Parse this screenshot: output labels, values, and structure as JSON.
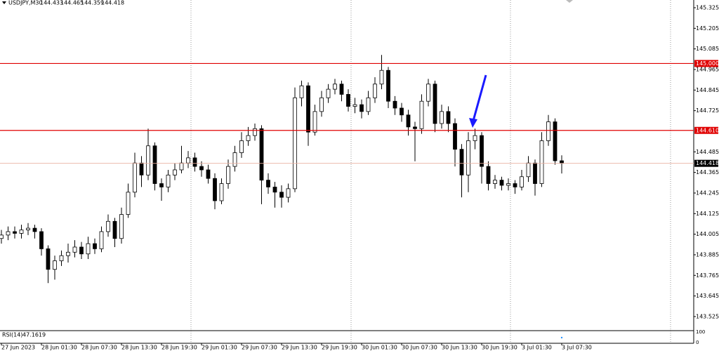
{
  "chart_data": {
    "type": "candlestick",
    "title": "USDJPY,M30",
    "categories": [
      "27 Jun 2023",
      null,
      null,
      null,
      null,
      null,
      "28 Jun 01:30",
      null,
      null,
      null,
      null,
      null,
      "28 Jun 07:30",
      null,
      null,
      null,
      null,
      null,
      "28 Jun 13:30",
      null,
      null,
      null,
      null,
      null,
      "28 Jun 19:30",
      null,
      null,
      null,
      null,
      null,
      "29 Jun 01:30",
      null,
      null,
      null,
      null,
      null,
      "29 Jun 07:30",
      null,
      null,
      null,
      null,
      null,
      "29 Jun 13:30",
      null,
      null,
      null,
      null,
      null,
      "29 Jun 19:30",
      null,
      null,
      null,
      null,
      null,
      "30 Jun 01:30",
      null,
      null,
      null,
      null,
      null,
      "30 Jun 07:30",
      null,
      null,
      null,
      null,
      null,
      "30 Jun 13:30",
      null,
      null,
      null,
      null,
      null,
      "30 Jun 19:30",
      null,
      null,
      null,
      null,
      null,
      "3 Jul 01:30",
      null,
      null,
      null,
      null,
      null,
      "3 Jul 07:30"
    ],
    "open": [
      143.98,
      144.0,
      144.02,
      144.01,
      144.03,
      144.04,
      144.02,
      143.92,
      143.8,
      143.85,
      143.88,
      143.9,
      143.93,
      143.89,
      143.95,
      143.92,
      144.02,
      144.08,
      143.98,
      144.12,
      144.25,
      144.42,
      144.35,
      144.52,
      144.3,
      144.28,
      144.35,
      144.38,
      144.42,
      144.45,
      144.4,
      144.38,
      144.33,
      144.2,
      144.3,
      144.4,
      144.48,
      144.55,
      144.58,
      144.62,
      144.32,
      144.28,
      144.25,
      144.22,
      144.27,
      144.8,
      144.87,
      144.6,
      144.72,
      144.8,
      144.85,
      144.88,
      144.82,
      144.75,
      144.76,
      144.72,
      144.8,
      144.88,
      144.96,
      144.78,
      144.74,
      144.7,
      144.63,
      144.62,
      144.78,
      144.88,
      144.65,
      144.72,
      144.65,
      144.5,
      144.35,
      144.55,
      144.58,
      144.4,
      144.3,
      144.32,
      144.29,
      144.3,
      144.28,
      144.34,
      144.42,
      144.3,
      144.55,
      144.66,
      144.433
    ],
    "high": [
      144.03,
      144.05,
      144.05,
      144.06,
      144.07,
      144.06,
      144.04,
      143.94,
      143.88,
      143.91,
      143.95,
      143.97,
      143.96,
      143.99,
      143.98,
      144.05,
      144.12,
      144.1,
      144.16,
      144.3,
      144.48,
      144.46,
      144.62,
      144.54,
      144.33,
      144.38,
      144.42,
      144.52,
      144.49,
      144.48,
      144.43,
      144.41,
      144.36,
      144.33,
      144.44,
      144.52,
      144.6,
      144.63,
      144.65,
      144.64,
      144.36,
      144.31,
      144.29,
      144.3,
      144.86,
      144.9,
      144.89,
      144.76,
      144.84,
      144.88,
      144.91,
      144.9,
      144.85,
      144.8,
      144.79,
      144.84,
      144.92,
      145.05,
      144.98,
      144.81,
      144.77,
      144.73,
      144.66,
      144.82,
      144.91,
      144.9,
      144.76,
      144.75,
      144.68,
      144.53,
      144.6,
      144.62,
      144.6,
      144.43,
      144.35,
      144.34,
      144.33,
      144.32,
      144.38,
      144.46,
      144.44,
      144.6,
      144.7,
      144.68,
      144.465
    ],
    "low": [
      143.95,
      143.97,
      143.98,
      143.98,
      144.0,
      143.98,
      143.88,
      143.72,
      143.74,
      143.82,
      143.84,
      143.87,
      143.86,
      143.86,
      143.89,
      143.9,
      143.99,
      143.93,
      143.95,
      144.1,
      144.22,
      144.28,
      144.32,
      144.26,
      144.2,
      144.25,
      144.32,
      144.36,
      144.39,
      144.37,
      144.34,
      144.3,
      144.15,
      144.18,
      144.27,
      144.37,
      144.45,
      144.52,
      144.55,
      144.18,
      144.24,
      144.16,
      144.16,
      144.19,
      144.25,
      144.75,
      144.52,
      144.58,
      144.69,
      144.77,
      144.82,
      144.78,
      144.72,
      144.71,
      144.68,
      144.7,
      144.77,
      144.85,
      144.74,
      144.7,
      144.66,
      144.58,
      144.43,
      144.59,
      144.75,
      144.6,
      144.62,
      144.6,
      144.4,
      144.22,
      144.25,
      144.5,
      144.3,
      144.26,
      144.27,
      144.26,
      144.26,
      144.24,
      144.26,
      144.31,
      144.23,
      144.28,
      144.52,
      144.41,
      144.359
    ],
    "close": [
      144.0,
      144.02,
      144.01,
      144.03,
      144.04,
      144.02,
      143.92,
      143.8,
      143.85,
      143.88,
      143.9,
      143.93,
      143.89,
      143.95,
      143.92,
      144.02,
      144.08,
      143.98,
      144.12,
      144.25,
      144.42,
      144.35,
      144.52,
      144.3,
      144.28,
      144.35,
      144.38,
      144.42,
      144.45,
      144.4,
      144.38,
      144.33,
      144.2,
      144.3,
      144.4,
      144.48,
      144.55,
      144.58,
      144.62,
      144.32,
      144.28,
      144.25,
      144.22,
      144.27,
      144.8,
      144.87,
      144.6,
      144.72,
      144.8,
      144.85,
      144.88,
      144.82,
      144.75,
      144.76,
      144.72,
      144.8,
      144.88,
      144.96,
      144.78,
      144.74,
      144.7,
      144.63,
      144.62,
      144.78,
      144.88,
      144.65,
      144.72,
      144.65,
      144.5,
      144.35,
      144.55,
      144.58,
      144.4,
      144.3,
      144.32,
      144.29,
      144.3,
      144.28,
      144.34,
      144.42,
      144.3,
      144.55,
      144.66,
      144.433,
      144.418
    ],
    "up_color": "#ffffff",
    "down_color": "#000000",
    "wick_color": "#000000",
    "ylim": [
      143.447,
      145.37
    ],
    "yticks": [
      143.525,
      143.645,
      143.765,
      143.885,
      144.005,
      144.125,
      144.245,
      144.365,
      144.485,
      144.725,
      144.845,
      144.965,
      145.085,
      145.205,
      145.325
    ],
    "hlines": [
      {
        "value": 145,
        "label": "145.000",
        "color": "#e00000"
      },
      {
        "value": 144.61,
        "label": "144.610",
        "color": "#e00000"
      }
    ],
    "price_line_color": "#000000",
    "rsi": {
      "title": "RSI(14)",
      "value": 47.1619,
      "ylim": [
        0,
        100
      ],
      "yticks": [
        100,
        0
      ],
      "color": "#1e90ff"
    }
  }
}
